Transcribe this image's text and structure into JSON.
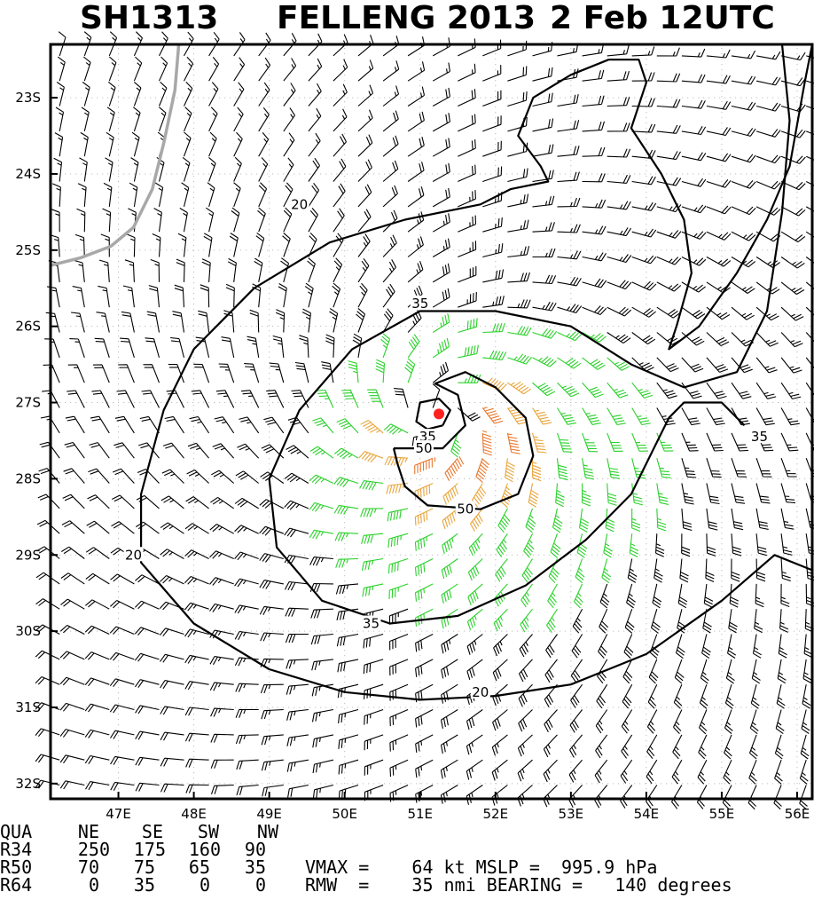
{
  "title": {
    "storm_id": "SH1313",
    "storm_name_year": "FELLENG 2013",
    "datetime": "2 Feb 12UTC"
  },
  "chart_data": {
    "type": "wind-barb-contour",
    "xaxis": {
      "lon_range": [
        46.1,
        56.2
      ],
      "ticks": [
        47,
        48,
        49,
        50,
        51,
        52,
        53,
        54,
        55,
        56
      ],
      "tick_labels": [
        "47E",
        "48E",
        "49E",
        "50E",
        "51E",
        "52E",
        "53E",
        "54E",
        "55E",
        "56E"
      ]
    },
    "yaxis": {
      "lat_range": [
        -32.2,
        -22.3
      ],
      "ticks": [
        -23,
        -24,
        -25,
        -26,
        -27,
        -28,
        -29,
        -30,
        -31,
        -32
      ],
      "tick_labels": [
        "23S",
        "24S",
        "25S",
        "26S",
        "27S",
        "28S",
        "29S",
        "30S",
        "31S",
        "32S"
      ]
    },
    "storm_center": {
      "lon": 51.25,
      "lat": -27.15
    },
    "contour_levels_kt": [
      20,
      35,
      50
    ],
    "contour_labels": [
      {
        "text": "20",
        "lon": 49.4,
        "lat": -24.4
      },
      {
        "text": "20",
        "lon": 47.2,
        "lat": -29.0
      },
      {
        "text": "20",
        "lon": 51.8,
        "lat": -30.8
      },
      {
        "text": "35",
        "lon": 51.0,
        "lat": -25.7
      },
      {
        "text": "35",
        "lon": 50.35,
        "lat": -29.9
      },
      {
        "text": "35",
        "lon": 55.5,
        "lat": -27.45
      },
      {
        "text": "35",
        "lon": 51.1,
        "lat": -27.45
      },
      {
        "text": "50",
        "lon": 51.05,
        "lat": -27.6
      },
      {
        "text": "50",
        "lon": 51.6,
        "lat": -28.4
      }
    ],
    "wind_speed_colors": {
      "lt34": "#000000",
      "34to49": "#2ad12a",
      "50to63": "#e8a43a",
      "ge64": "#e8782e"
    },
    "colors": {
      "contour": "#000000",
      "coast": "#a8a8a8",
      "center": "#ff2020",
      "grid": "#bdbdbd"
    },
    "grid": true
  },
  "wind_radii_table": {
    "header": [
      "QUA",
      "NE",
      "SE",
      "SW",
      "NW"
    ],
    "rows": [
      [
        "R34",
        "250",
        "175",
        "160",
        "90"
      ],
      [
        "R50",
        "70",
        "75",
        "65",
        "35"
      ],
      [
        "R64",
        "0",
        "35",
        "0",
        "0"
      ]
    ]
  },
  "summary": {
    "line1": "VMAX =    64 kt MSLP =  995.9 hPa",
    "line2": "RMW  =    35 nmi BEARING =   140 degrees"
  }
}
